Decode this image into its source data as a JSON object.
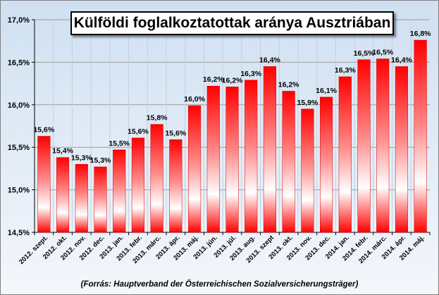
{
  "chart_data": {
    "type": "bar",
    "title": "Külföldi foglalkoztatottak aránya Ausztriában",
    "source": "(Forrás: Hauptverband der Österreichischen Sozialversicherungsträger)",
    "categories": [
      "2012. szept.",
      "2012. okt.",
      "2012. nov.",
      "2012. dec.",
      "2013. jan.",
      "2013. febr.",
      "2013. márc.",
      "2013. ápr.",
      "2013. máj.",
      "2013. jún.",
      "2013. júl.",
      "2013. aug.",
      "2013. szept",
      "2013. okt.",
      "2013. nov.",
      "2013. dec.",
      "2014. jan.",
      "2014. febr.",
      "2014. márc.",
      "2014. ápr.",
      "2014. máj."
    ],
    "values": [
      15.63,
      15.38,
      15.3,
      15.27,
      15.47,
      15.61,
      15.77,
      15.59,
      15.99,
      16.22,
      16.21,
      16.29,
      16.45,
      16.16,
      15.95,
      16.09,
      16.33,
      16.53,
      16.54,
      16.45,
      16.76
    ],
    "data_labels": [
      "15,6%",
      "15,4%",
      "15,3%",
      "15,3%",
      "15,5%",
      "15,6%",
      "15,8%",
      "15,6%",
      "16,0%",
      "16,2%",
      "16,2%",
      "16,3%",
      "16,4%",
      "16,2%",
      "15,9%",
      "16,1%",
      "16,3%",
      "16,5%",
      "16,5%",
      "16,4%",
      "16,8%"
    ],
    "yticks": [
      14.5,
      15.0,
      15.5,
      16.0,
      16.5,
      17.0
    ],
    "ytick_labels": [
      "14,5%",
      "15,0%",
      "15,5%",
      "16,0%",
      "16,5%",
      "17,0%"
    ],
    "ylim": [
      14.5,
      17.0
    ],
    "grid": true,
    "colors": {
      "bar": "#ff0000",
      "bar_highlight": "#ffffff",
      "grid": "#9a9a9a",
      "background_top": "#cfe0f2",
      "background_bottom": "#f4f7fb"
    }
  }
}
